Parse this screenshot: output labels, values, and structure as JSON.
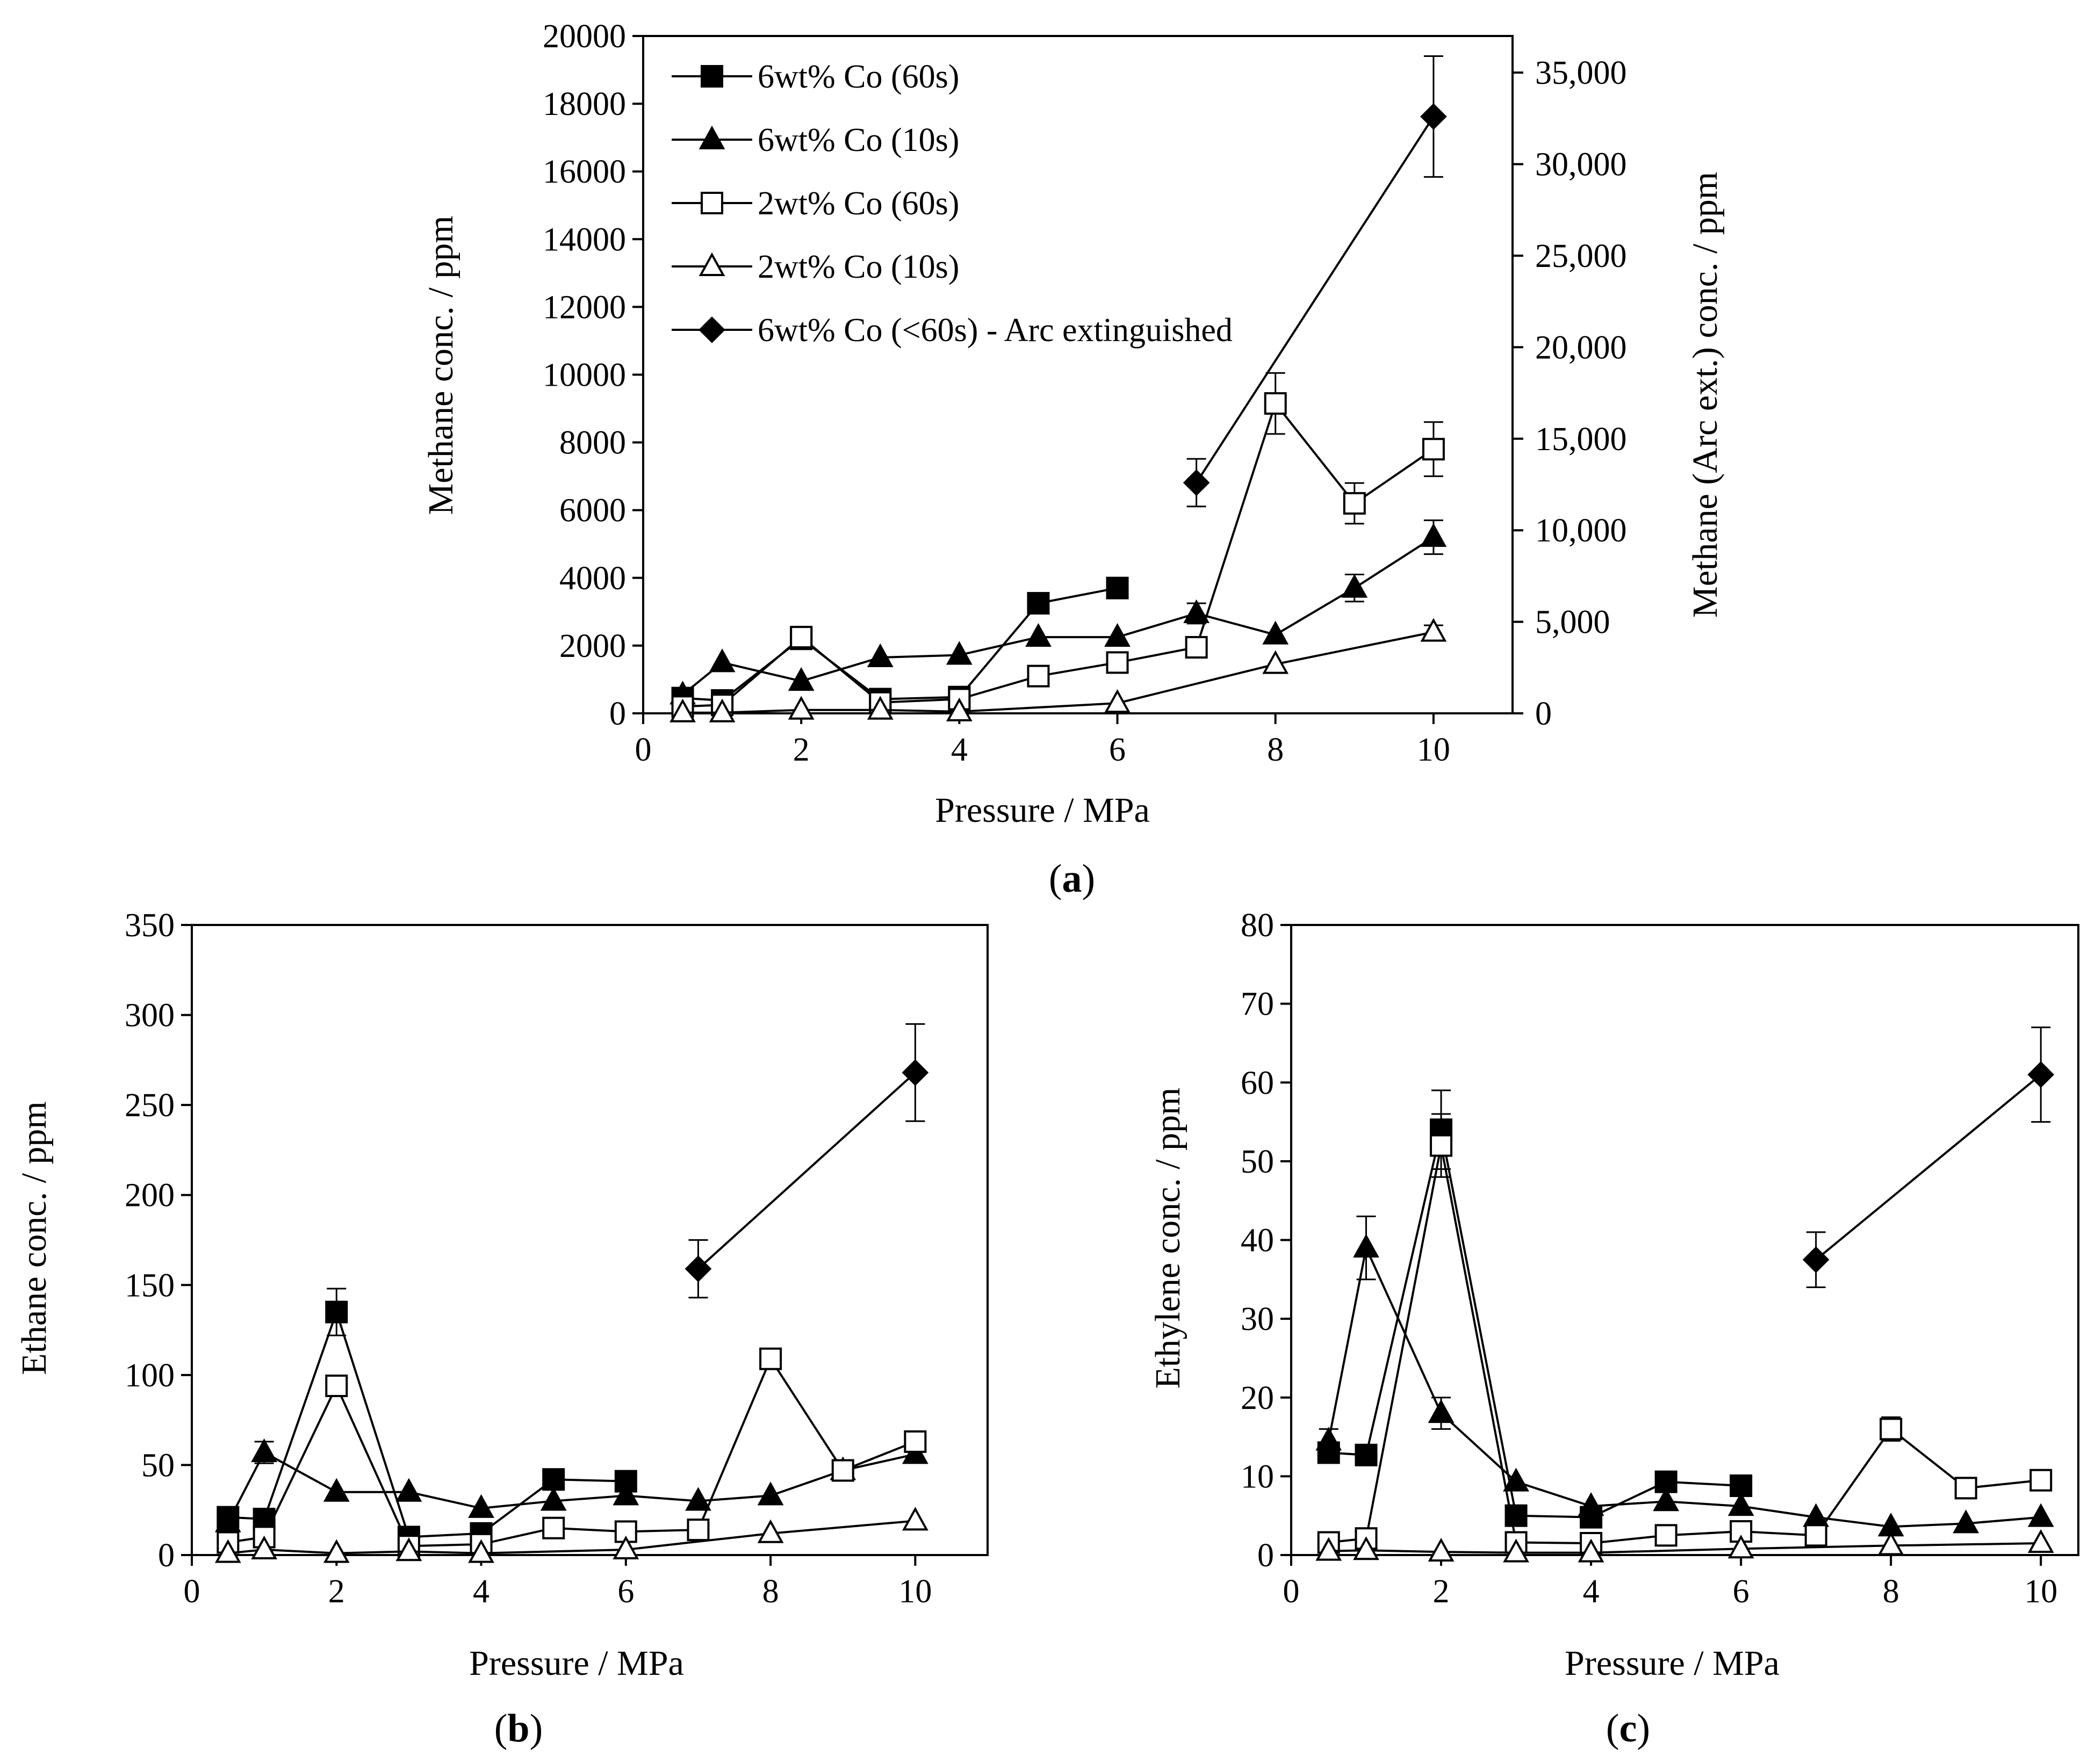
{
  "figure": {
    "captions": {
      "a": "(a)",
      "b": "(b)",
      "c": "(c)"
    },
    "caption_parts": {
      "open": "(",
      "close": ")"
    }
  },
  "legend": [
    {
      "key": "co6_60",
      "label": "6wt% Co (60s)"
    },
    {
      "key": "co6_10",
      "label": "6wt% Co (10s)"
    },
    {
      "key": "co2_60",
      "label": "2wt% Co (60s)"
    },
    {
      "key": "co2_10",
      "label": "2wt% Co (10s)"
    },
    {
      "key": "arc",
      "label": "6wt% Co (<60s) - Arc extinguished"
    }
  ],
  "series_styles": {
    "co6_60": {
      "marker": "square",
      "fill": "#000000"
    },
    "co6_10": {
      "marker": "triangle",
      "fill": "#000000"
    },
    "co2_60": {
      "marker": "square",
      "fill": "#ffffff"
    },
    "co2_10": {
      "marker": "triangle",
      "fill": "#ffffff"
    },
    "arc": {
      "marker": "diamond",
      "fill": "#000000"
    }
  },
  "chart_data": [
    {
      "id": "a",
      "type": "line",
      "caption": "a",
      "xlabel": "Pressure / MPa",
      "ylabel": "Methane conc. / ppm",
      "y2label": "Methane (Arc ext.) conc. / ppm",
      "xlim": [
        0,
        11
      ],
      "ylim": [
        0,
        20000
      ],
      "y2lim": [
        0,
        37000
      ],
      "xticks": [
        0,
        2,
        4,
        6,
        8,
        10
      ],
      "yticks": [
        0,
        2000,
        4000,
        6000,
        8000,
        10000,
        12000,
        14000,
        16000,
        18000,
        20000
      ],
      "y2ticks": [
        0,
        5000,
        10000,
        15000,
        20000,
        25000,
        30000,
        35000
      ],
      "y2ticklabels": [
        "0",
        "5,000",
        "10,000",
        "15,000",
        "20,000",
        "25,000",
        "30,000",
        "35,000"
      ],
      "legend_position": "top-left",
      "series": [
        {
          "key": "co6_60",
          "x": [
            0.5,
            1,
            2,
            3,
            4,
            5,
            6
          ],
          "y": [
            450,
            380,
            2200,
            420,
            480,
            3250,
            3700
          ],
          "err": [
            0,
            0,
            0,
            0,
            0,
            250,
            300
          ]
        },
        {
          "key": "co6_10",
          "x": [
            0.5,
            1,
            2,
            3,
            4,
            5,
            6,
            7,
            8,
            9,
            10
          ],
          "y": [
            550,
            1500,
            950,
            1650,
            1720,
            2250,
            2250,
            2950,
            2320,
            3700,
            5200
          ],
          "err": [
            0,
            0,
            0,
            0,
            0,
            0,
            0,
            300,
            0,
            400,
            500
          ]
        },
        {
          "key": "co2_60",
          "x": [
            0.5,
            1,
            2,
            3,
            4,
            5,
            6,
            7,
            8,
            9,
            10
          ],
          "y": [
            200,
            250,
            2250,
            320,
            420,
            1100,
            1500,
            1950,
            9150,
            6200,
            7800
          ],
          "err": [
            0,
            0,
            0,
            0,
            0,
            0,
            0,
            0,
            900,
            600,
            800
          ]
        },
        {
          "key": "co2_10",
          "x": [
            0.5,
            1,
            2,
            3,
            4,
            6,
            8,
            10
          ],
          "y": [
            20,
            20,
            100,
            100,
            50,
            300,
            1450,
            2400
          ],
          "err": [
            0,
            0,
            0,
            0,
            0,
            0,
            0,
            200
          ]
        },
        {
          "key": "arc",
          "axis": "y2",
          "x": [
            7,
            10
          ],
          "y": [
            12600,
            32600
          ],
          "err": [
            1300,
            3300
          ]
        }
      ]
    },
    {
      "id": "b",
      "type": "line",
      "caption": "b",
      "xlabel": "Pressure / MPa",
      "ylabel": "Ethane conc. / ppm",
      "xlim": [
        0,
        11
      ],
      "ylim": [
        0,
        350
      ],
      "xticks": [
        0,
        2,
        4,
        6,
        8,
        10
      ],
      "yticks": [
        0,
        50,
        100,
        150,
        200,
        250,
        300,
        350
      ],
      "series": [
        {
          "key": "co6_60",
          "x": [
            0.5,
            1,
            2,
            3,
            4,
            5,
            6
          ],
          "y": [
            21,
            20,
            135,
            10,
            12,
            42,
            41
          ],
          "err": [
            0,
            0,
            13,
            0,
            0,
            0,
            0
          ]
        },
        {
          "key": "co6_10",
          "x": [
            0.5,
            1,
            2,
            3,
            4,
            5,
            6,
            7,
            8,
            9,
            10
          ],
          "y": [
            18,
            57,
            35,
            35,
            26,
            30,
            33,
            30,
            33,
            47,
            56
          ],
          "err": [
            0,
            6,
            0,
            0,
            0,
            0,
            0,
            0,
            0,
            0,
            0
          ]
        },
        {
          "key": "co2_60",
          "x": [
            0.5,
            1,
            2,
            3,
            4,
            5,
            6,
            7,
            8,
            9,
            10
          ],
          "y": [
            7,
            10,
            94,
            5,
            6,
            15,
            13,
            14,
            109,
            47,
            63
          ],
          "err": [
            0,
            0,
            0,
            0,
            0,
            0,
            0,
            0,
            0,
            0,
            0
          ]
        },
        {
          "key": "co2_10",
          "x": [
            0.5,
            1,
            2,
            3,
            4,
            6,
            8,
            10
          ],
          "y": [
            1,
            3,
            1,
            2,
            1,
            3,
            12,
            19
          ],
          "err": [
            0,
            0,
            0,
            0,
            0,
            0,
            0,
            0
          ]
        },
        {
          "key": "arc",
          "x": [
            7,
            10
          ],
          "y": [
            159,
            268
          ],
          "err": [
            16,
            27
          ]
        }
      ]
    },
    {
      "id": "c",
      "type": "line",
      "caption": "c",
      "xlabel": "Pressure / MPa",
      "ylabel": "Ethylene conc. / ppm",
      "xlim": [
        0,
        10.5
      ],
      "ylim": [
        0,
        80
      ],
      "xticks": [
        0,
        2,
        4,
        6,
        8,
        10
      ],
      "yticks": [
        0,
        10,
        20,
        30,
        40,
        50,
        60,
        70,
        80
      ],
      "series": [
        {
          "key": "co6_60",
          "x": [
            0.5,
            1,
            2,
            3,
            4,
            5,
            6
          ],
          "y": [
            13,
            12.7,
            54,
            5,
            4.8,
            9.3,
            8.8
          ],
          "err": [
            0,
            0,
            5,
            0,
            0,
            0,
            0
          ]
        },
        {
          "key": "co6_10",
          "x": [
            0.5,
            1,
            2,
            3,
            4,
            5,
            6,
            7,
            8,
            9,
            10
          ],
          "y": [
            14.5,
            39,
            18,
            9.3,
            6.2,
            6.8,
            6.2,
            4.8,
            3.6,
            4,
            4.8
          ],
          "err": [
            1.5,
            4,
            2,
            0,
            0,
            0,
            0,
            0,
            0,
            0,
            0
          ]
        },
        {
          "key": "co2_60",
          "x": [
            0.5,
            1,
            2,
            3,
            4,
            5,
            6,
            7,
            8,
            9,
            10
          ],
          "y": [
            1.6,
            2.1,
            52,
            1.6,
            1.5,
            2.5,
            3,
            2.5,
            16,
            8.5,
            9.5
          ],
          "err": [
            0,
            0,
            4,
            0,
            0,
            0,
            0,
            0,
            1.5,
            0,
            0
          ]
        },
        {
          "key": "co2_10",
          "x": [
            0.5,
            1,
            2,
            3,
            4,
            6,
            8,
            10
          ],
          "y": [
            0.5,
            0.6,
            0.4,
            0.3,
            0.3,
            0.8,
            1.2,
            1.5
          ],
          "err": [
            0,
            0,
            0,
            0,
            0,
            0,
            0,
            0
          ]
        },
        {
          "key": "arc",
          "x": [
            7,
            10
          ],
          "y": [
            37.5,
            61
          ],
          "err": [
            3.5,
            6
          ]
        }
      ]
    }
  ]
}
